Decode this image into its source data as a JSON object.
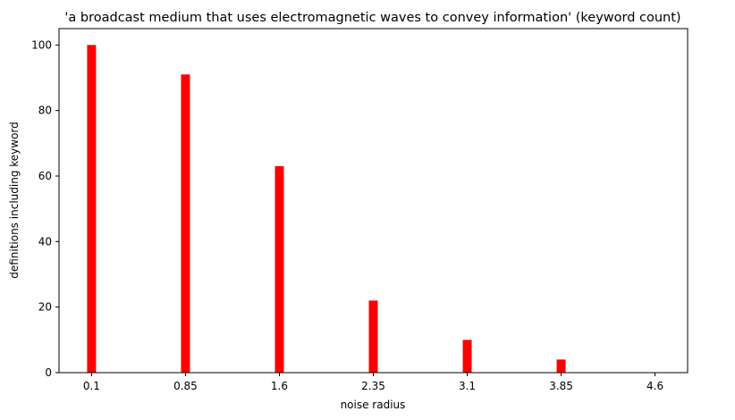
{
  "chart_data": {
    "type": "bar",
    "title": "'a broadcast medium that uses electromagnetic waves to convey information' (keyword count)",
    "xlabel": "noise radius",
    "ylabel": "definitions including keyword",
    "categories": [
      "0.1",
      "0.85",
      "1.6",
      "2.35",
      "3.1",
      "3.85",
      "4.6"
    ],
    "x": [
      0.1,
      0.85,
      1.6,
      2.35,
      3.1,
      3.85,
      4.6
    ],
    "values": [
      100,
      91,
      63,
      22,
      10,
      4,
      0
    ],
    "xlim": [
      -0.16,
      4.86
    ],
    "ylim": [
      0,
      105
    ],
    "yticks": [
      0,
      20,
      40,
      60,
      80,
      100
    ],
    "bar_color": "#ff0000",
    "grid": false,
    "legend": "none"
  }
}
